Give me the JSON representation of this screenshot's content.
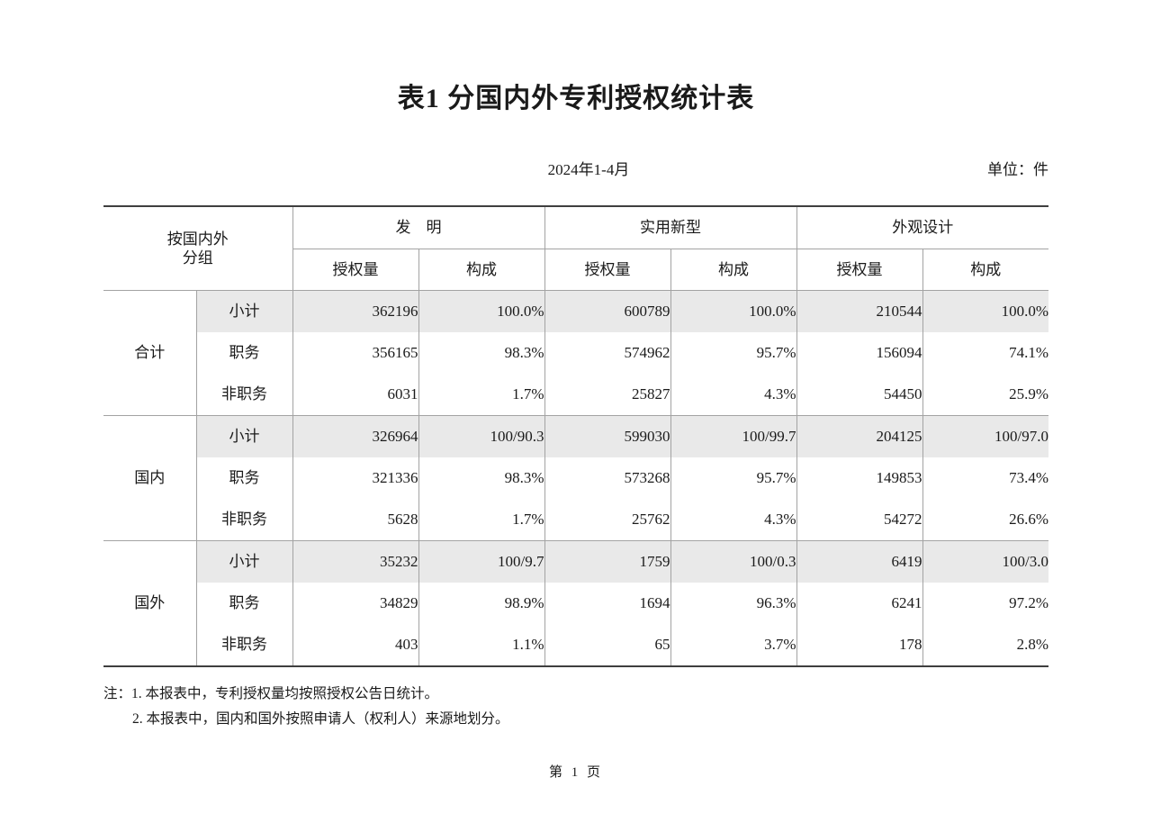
{
  "page": {
    "title": "表1 分国内外专利授权统计表",
    "period": "2024年1-4月",
    "unit_label": "单位：件",
    "footnotes": [
      "注：1. 本报表中，专利授权量均按照授权公告日统计。",
      "2. 本报表中，国内和国外按照申请人（权利人）来源地划分。"
    ],
    "page_number": "第 1 页"
  },
  "colors": {
    "outer_border": "#3f3f3f",
    "inner_border": "#a3a3a3",
    "subtotal_row_bg": "#e9e9e9",
    "text": "#1a1a1a"
  },
  "table": {
    "row_header": "按国内外\n分组",
    "col_groups": [
      "发　明",
      "实用新型",
      "外观设计"
    ],
    "sub_headers": [
      "授权量",
      "构成"
    ],
    "groups": [
      {
        "label": "合计",
        "rows": [
          {
            "label": "小计",
            "subtotal": true,
            "values": [
              "362196",
              "100.0%",
              "600789",
              "100.0%",
              "210544",
              "100.0%"
            ]
          },
          {
            "label": "职务",
            "subtotal": false,
            "values": [
              "356165",
              "98.3%",
              "574962",
              "95.7%",
              "156094",
              "74.1%"
            ]
          },
          {
            "label": "非职务",
            "subtotal": false,
            "values": [
              "6031",
              "1.7%",
              "25827",
              "4.3%",
              "54450",
              "25.9%"
            ]
          }
        ]
      },
      {
        "label": "国内",
        "rows": [
          {
            "label": "小计",
            "subtotal": true,
            "values": [
              "326964",
              "100/90.3",
              "599030",
              "100/99.7",
              "204125",
              "100/97.0"
            ]
          },
          {
            "label": "职务",
            "subtotal": false,
            "values": [
              "321336",
              "98.3%",
              "573268",
              "95.7%",
              "149853",
              "73.4%"
            ]
          },
          {
            "label": "非职务",
            "subtotal": false,
            "values": [
              "5628",
              "1.7%",
              "25762",
              "4.3%",
              "54272",
              "26.6%"
            ]
          }
        ]
      },
      {
        "label": "国外",
        "rows": [
          {
            "label": "小计",
            "subtotal": true,
            "values": [
              "35232",
              "100/9.7",
              "1759",
              "100/0.3",
              "6419",
              "100/3.0"
            ]
          },
          {
            "label": "职务",
            "subtotal": false,
            "values": [
              "34829",
              "98.9%",
              "1694",
              "96.3%",
              "6241",
              "97.2%"
            ]
          },
          {
            "label": "非职务",
            "subtotal": false,
            "values": [
              "403",
              "1.1%",
              "65",
              "3.7%",
              "178",
              "2.8%"
            ]
          }
        ]
      }
    ]
  }
}
